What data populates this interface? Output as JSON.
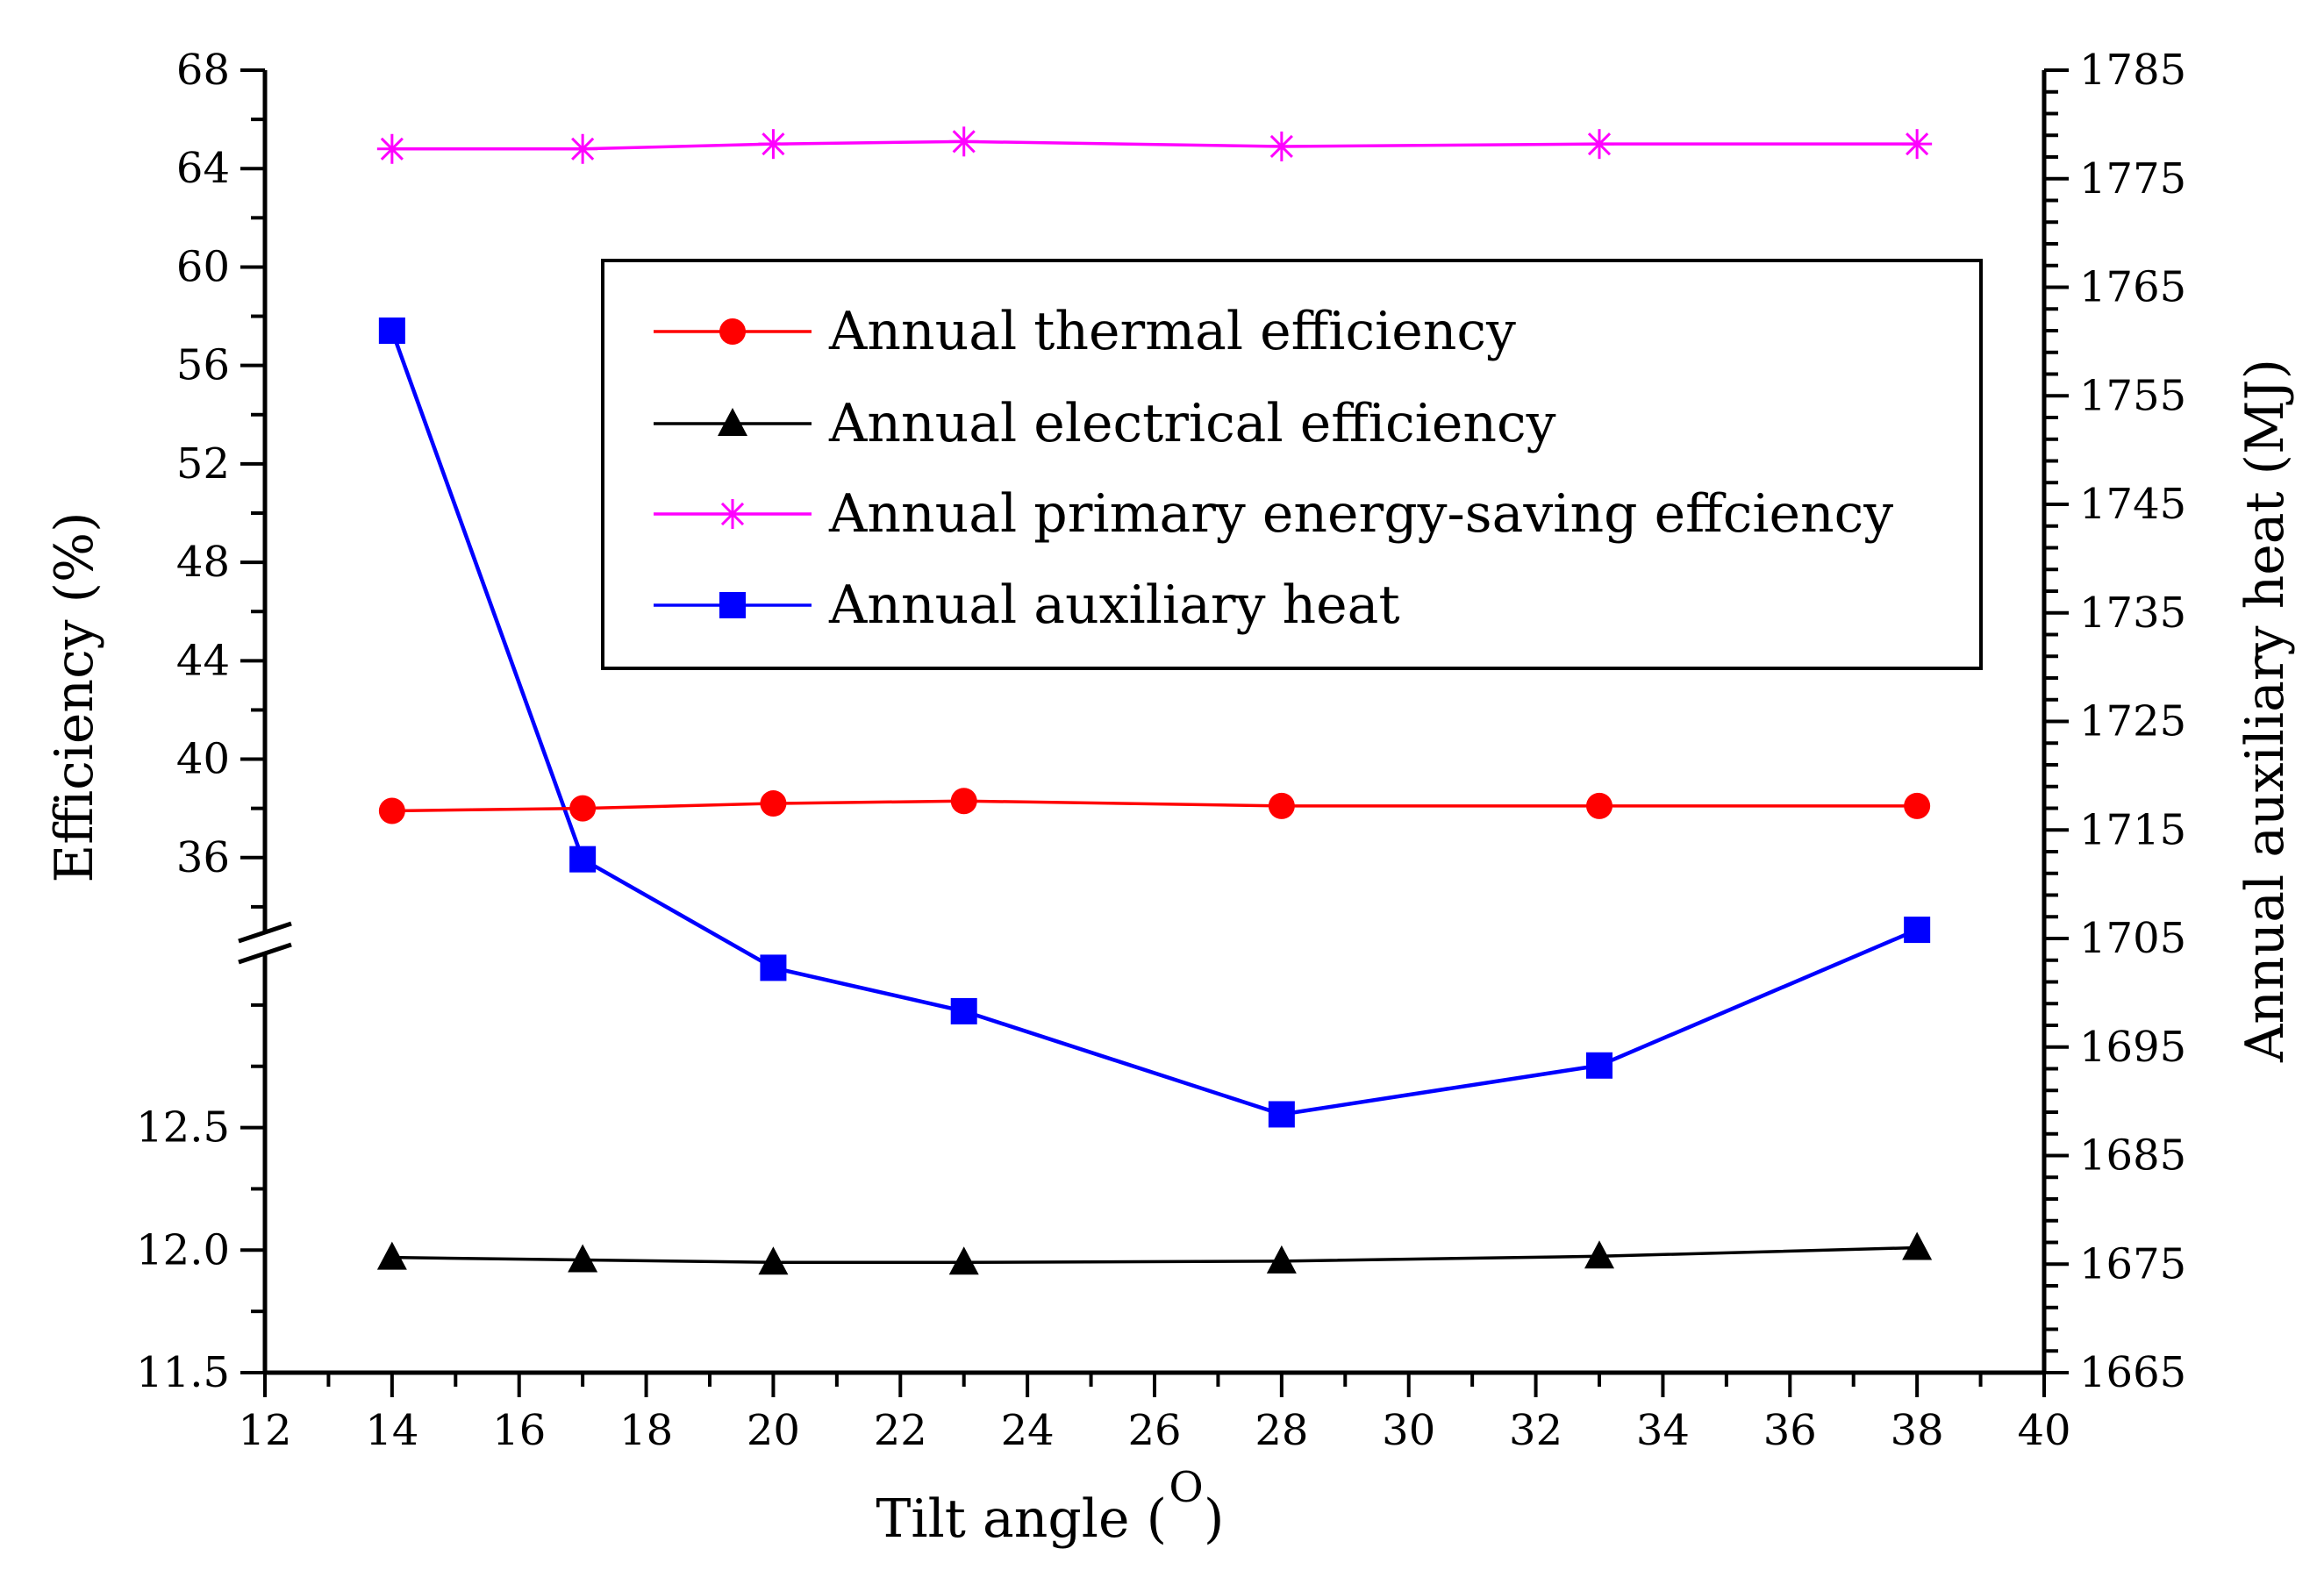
{
  "chart_data": {
    "type": "line",
    "title": "",
    "xlabel": "Tilt angle ( ",
    "xlabel_superscript": "O",
    "xlabel_close": ")",
    "ylabel_left": "Efficiency (%)",
    "ylabel_right": "Annual auxiliary heat (MJ)",
    "xlim": [
      12,
      40
    ],
    "x_ticks": [
      "12",
      "14",
      "16",
      "18",
      "20",
      "22",
      "24",
      "26",
      "28",
      "30",
      "32",
      "34",
      "36",
      "38",
      "40"
    ],
    "y_left_upper_lim": [
      32,
      68
    ],
    "y_left_upper_ticks": [
      "36",
      "40",
      "44",
      "48",
      "52",
      "56",
      "60",
      "64",
      "68"
    ],
    "y_left_lower_lim": [
      11.5,
      13.2
    ],
    "y_left_lower_ticks": [
      "11.5",
      "12.0",
      "12.5"
    ],
    "y_right_lim": [
      1665,
      1785
    ],
    "y_right_ticks": [
      "1665",
      "1675",
      "1685",
      "1695",
      "1705",
      "1715",
      "1725",
      "1735",
      "1745",
      "1755",
      "1765",
      "1775",
      "1785"
    ],
    "x": [
      14,
      17,
      20,
      23,
      28,
      33,
      38
    ],
    "series": [
      {
        "name": "Annual thermal efficiency",
        "axis": "left-upper",
        "color": "#ff0000",
        "marker": "circle",
        "values": [
          37.9,
          38.0,
          38.2,
          38.3,
          38.1,
          38.1,
          38.1
        ]
      },
      {
        "name": "Annual electrical efficiency",
        "axis": "left-lower",
        "color": "#000000",
        "marker": "triangle",
        "values": [
          11.97,
          11.96,
          11.95,
          11.95,
          11.955,
          11.975,
          12.01
        ]
      },
      {
        "name": "Annual primary energy-saving effciency",
        "axis": "left-upper",
        "color": "#ff00ff",
        "marker": "star",
        "values": [
          64.8,
          64.8,
          65.0,
          65.1,
          64.9,
          65.0,
          65.0
        ]
      },
      {
        "name": "Annual auxiliary heat",
        "axis": "right",
        "color": "#0000ff",
        "marker": "square",
        "values": [
          1761,
          1712.3,
          1702.3,
          1698.3,
          1688.8,
          1693.3,
          1705.8
        ]
      }
    ],
    "legend_position": "top-center"
  }
}
